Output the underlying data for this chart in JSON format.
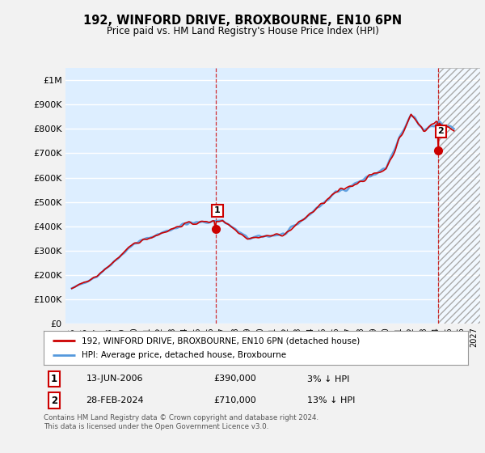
{
  "title": "192, WINFORD DRIVE, BROXBOURNE, EN10 6PN",
  "subtitle": "Price paid vs. HM Land Registry's House Price Index (HPI)",
  "ylabel_ticks": [
    "£0",
    "£100K",
    "£200K",
    "£300K",
    "£400K",
    "£500K",
    "£600K",
    "£700K",
    "£800K",
    "£900K",
    "£1M"
  ],
  "ytick_values": [
    0,
    100000,
    200000,
    300000,
    400000,
    500000,
    600000,
    700000,
    800000,
    900000,
    1000000
  ],
  "ylim": [
    0,
    1050000
  ],
  "xlim_start": 1994.5,
  "xlim_end": 2027.5,
  "background_color": "#f2f2f2",
  "plot_bg_color": "#ddeeff",
  "grid_color": "white",
  "hpi_color": "#5599dd",
  "price_color": "#cc0000",
  "hatch_color": "#cccccc",
  "marker1_x": 2006.44,
  "marker1_y": 390000,
  "marker2_x": 2024.16,
  "marker2_y": 710000,
  "legend_label1": "192, WINFORD DRIVE, BROXBOURNE, EN10 6PN (detached house)",
  "legend_label2": "HPI: Average price, detached house, Broxbourne",
  "annotation1": [
    "1",
    "13-JUN-2006",
    "£390,000",
    "3% ↓ HPI"
  ],
  "annotation2": [
    "2",
    "28-FEB-2024",
    "£710,000",
    "13% ↓ HPI"
  ],
  "footer": "Contains HM Land Registry data © Crown copyright and database right 2024.\nThis data is licensed under the Open Government Licence v3.0.",
  "xtick_years": [
    1995,
    1996,
    1997,
    1998,
    1999,
    2000,
    2001,
    2002,
    2003,
    2004,
    2005,
    2006,
    2007,
    2008,
    2009,
    2010,
    2011,
    2012,
    2013,
    2014,
    2015,
    2016,
    2017,
    2018,
    2019,
    2020,
    2021,
    2022,
    2023,
    2024,
    2025,
    2026,
    2027
  ]
}
